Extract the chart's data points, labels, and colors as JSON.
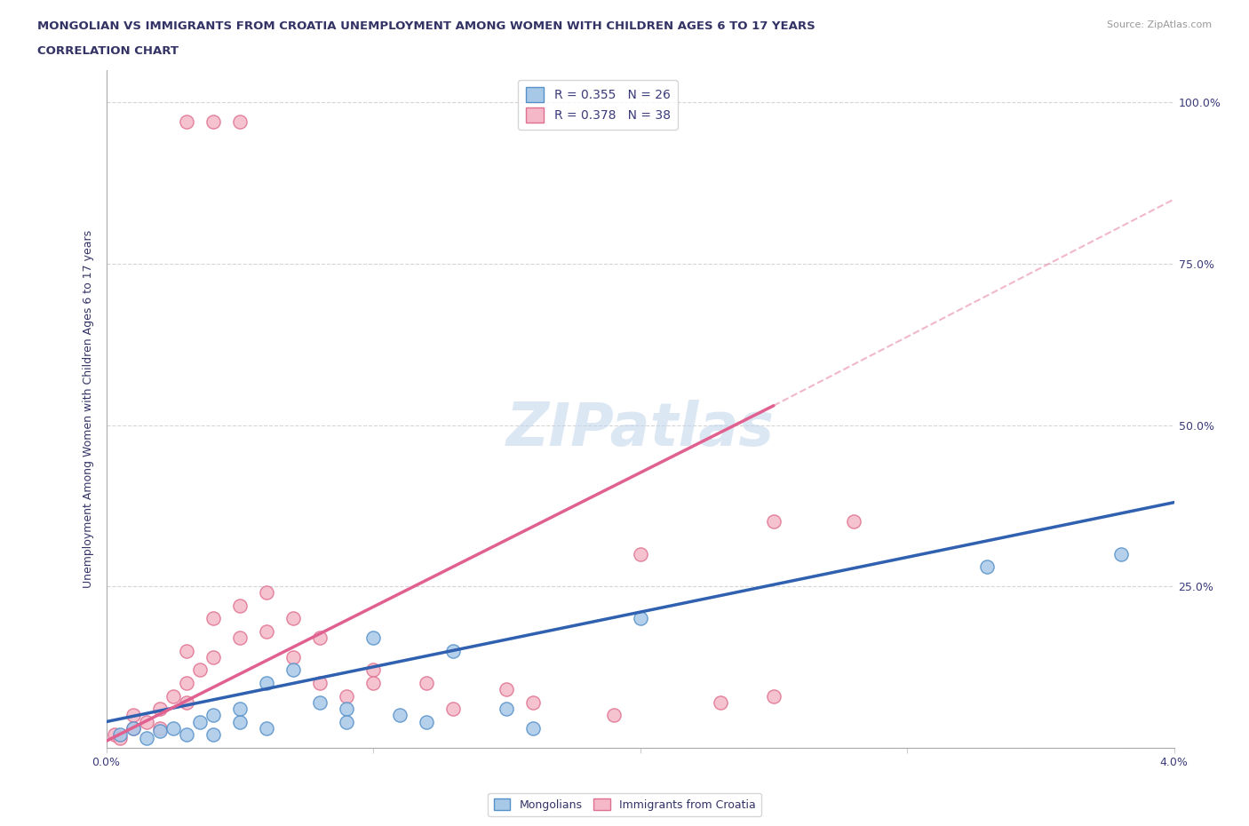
{
  "title": "MONGOLIAN VS IMMIGRANTS FROM CROATIA UNEMPLOYMENT AMONG WOMEN WITH CHILDREN AGES 6 TO 17 YEARS",
  "subtitle": "CORRELATION CHART",
  "source": "Source: ZipAtlas.com",
  "ylabel": "Unemployment Among Women with Children Ages 6 to 17 years",
  "xlim": [
    0.0,
    0.04
  ],
  "ylim": [
    0.0,
    1.05
  ],
  "yticks": [
    0.0,
    0.25,
    0.5,
    0.75,
    1.0
  ],
  "ytick_labels_right": [
    "",
    "25.0%",
    "50.0%",
    "75.0%",
    "100.0%"
  ],
  "legend1_label": "R = 0.355   N = 26",
  "legend2_label": "R = 0.378   N = 38",
  "mongolian_color": "#a8c8e8",
  "croatia_color": "#f4b8c8",
  "mongolian_edge": "#5590c8",
  "croatia_edge": "#e07090",
  "trend_mongolian_color": "#3060b0",
  "trend_croatia_color": "#e06090",
  "watermark": "ZIPatlas",
  "mongolian_scatter_x": [
    0.0005,
    0.001,
    0.0015,
    0.002,
    0.0025,
    0.003,
    0.0035,
    0.004,
    0.004,
    0.005,
    0.005,
    0.006,
    0.006,
    0.007,
    0.008,
    0.009,
    0.009,
    0.01,
    0.011,
    0.012,
    0.013,
    0.015,
    0.016,
    0.02,
    0.033,
    0.038
  ],
  "mongolian_scatter_y": [
    0.02,
    0.03,
    0.015,
    0.025,
    0.03,
    0.02,
    0.04,
    0.05,
    0.02,
    0.04,
    0.06,
    0.03,
    0.1,
    0.12,
    0.07,
    0.06,
    0.04,
    0.17,
    0.05,
    0.04,
    0.15,
    0.06,
    0.03,
    0.2,
    0.28,
    0.3
  ],
  "croatia_scatter_x": [
    0.0003,
    0.0005,
    0.001,
    0.001,
    0.0015,
    0.002,
    0.002,
    0.0025,
    0.003,
    0.003,
    0.003,
    0.0035,
    0.004,
    0.004,
    0.005,
    0.005,
    0.006,
    0.006,
    0.007,
    0.007,
    0.008,
    0.008,
    0.009,
    0.01,
    0.012,
    0.013,
    0.015,
    0.016,
    0.019,
    0.02,
    0.023,
    0.025,
    0.028,
    0.003,
    0.004,
    0.005,
    0.025,
    0.01
  ],
  "croatia_scatter_y": [
    0.02,
    0.015,
    0.05,
    0.03,
    0.04,
    0.06,
    0.03,
    0.08,
    0.1,
    0.07,
    0.15,
    0.12,
    0.2,
    0.14,
    0.22,
    0.17,
    0.18,
    0.24,
    0.2,
    0.14,
    0.17,
    0.1,
    0.08,
    0.12,
    0.1,
    0.06,
    0.09,
    0.07,
    0.05,
    0.3,
    0.07,
    0.08,
    0.35,
    0.97,
    0.97,
    0.97,
    0.35,
    0.1
  ],
  "mongolian_trend_x": [
    0.0,
    0.04
  ],
  "mongolian_trend_y": [
    0.04,
    0.38
  ],
  "croatia_trend_x": [
    0.0,
    0.025
  ],
  "croatia_trend_y": [
    0.01,
    0.53
  ],
  "dashed_trend_x": [
    0.025,
    0.04
  ],
  "dashed_trend_y": [
    0.53,
    0.85
  ]
}
